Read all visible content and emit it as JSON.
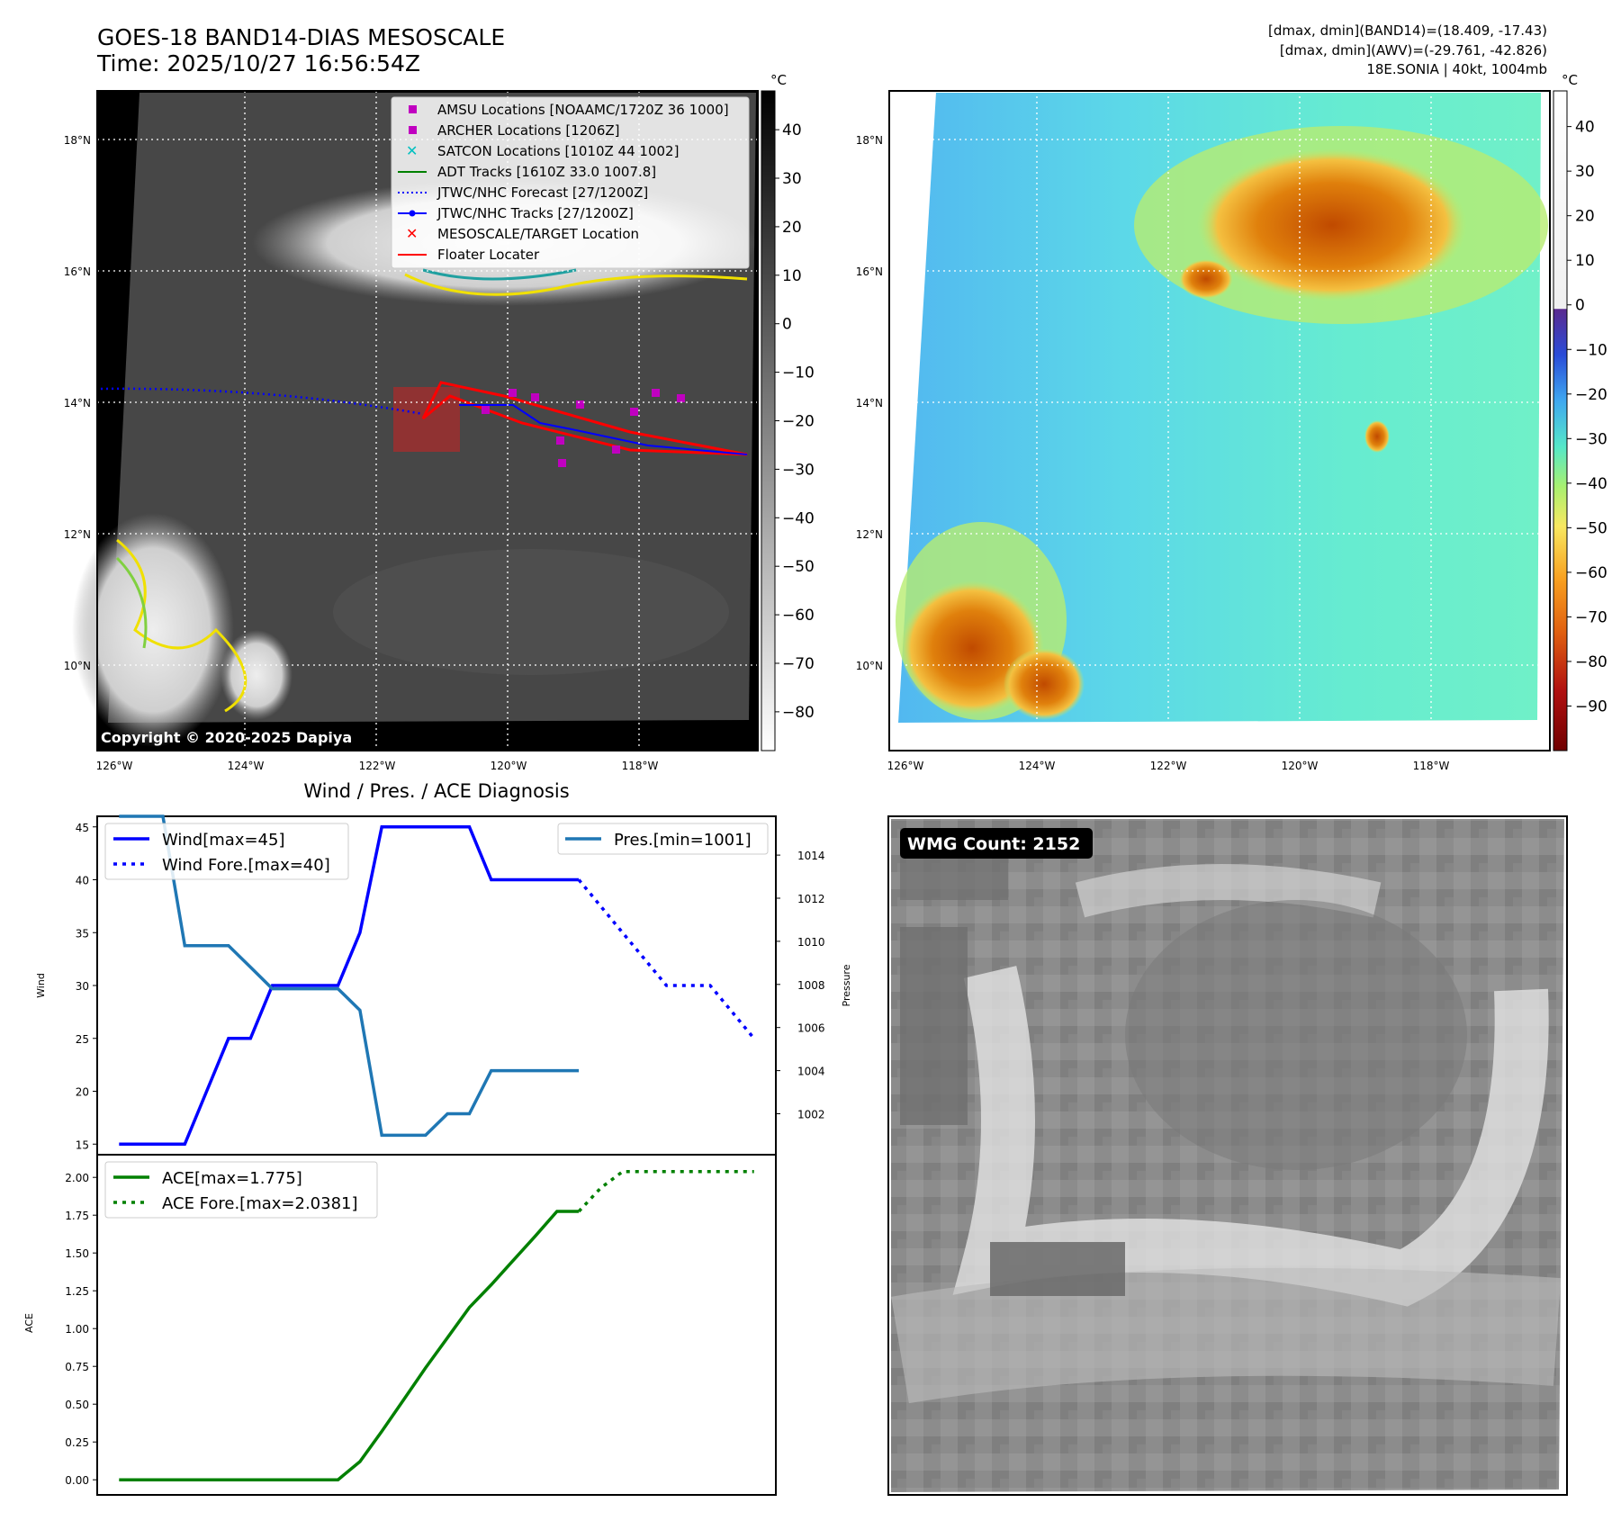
{
  "header": {
    "title_line1": "GOES-18 BAND14-DIAS MESOSCALE",
    "title_line2": "Time: 2025/10/27 16:56:54Z",
    "stats_line1": "[dmax, dmin](BAND14)=(18.409, -17.43)",
    "stats_line2": "[dmax, dmin](AWV)=(-29.761, -42.826)",
    "stats_line3": "18E.SONIA | 40kt, 1004mb",
    "copyright": "Copyright © 2020-2025 Dapiya",
    "wmg_label": "WMG Count: 2152",
    "diag_title": "Wind / Pres. / ACE Diagnosis"
  },
  "maps": {
    "lat_ticks": [
      "18°N",
      "16°N",
      "14°N",
      "12°N",
      "10°N"
    ],
    "lat_values": [
      18,
      16,
      14,
      12,
      10
    ],
    "lon_ticks": [
      "126°W",
      "124°W",
      "122°W",
      "120°W",
      "118°W"
    ],
    "lon_values": [
      -126,
      -124,
      -122,
      -120,
      -118
    ],
    "colorbar_unit": "°C",
    "gray_colorbar_ticks": [
      "40",
      "30",
      "20",
      "10",
      "0",
      "−10",
      "−20",
      "−30",
      "−40",
      "−50",
      "−60",
      "−70",
      "−80"
    ],
    "gray_colorbar_values": [
      40,
      30,
      20,
      10,
      0,
      -10,
      -20,
      -30,
      -40,
      -50,
      -60,
      -70,
      -80
    ],
    "color_colorbar_ticks": [
      "40",
      "30",
      "20",
      "10",
      "0",
      "−10",
      "−20",
      "−30",
      "−40",
      "−50",
      "−60",
      "−70",
      "−80",
      "−90"
    ],
    "color_colorbar_values": [
      40,
      30,
      20,
      10,
      0,
      -10,
      -20,
      -30,
      -40,
      -50,
      -60,
      -70,
      -80,
      -90
    ],
    "legend": [
      {
        "label": "AMSU Locations [NOAAMC/1720Z 36 1000]",
        "marker": "square",
        "color": "#c000c0"
      },
      {
        "label": "ARCHER Locations [1206Z]",
        "marker": "square",
        "color": "#c000c0"
      },
      {
        "label": "SATCON Locations [1010Z 44 1002]",
        "marker": "x",
        "color": "#00c0c0"
      },
      {
        "label": "ADT Tracks [1610Z 33.0 1007.8]",
        "marker": "line",
        "color": "#008000"
      },
      {
        "label": "JTWC/NHC Forecast [27/1200Z]",
        "marker": "dotted",
        "color": "#0000ff"
      },
      {
        "label": "JTWC/NHC Tracks [27/1200Z]",
        "marker": "line-dot",
        "color": "#0000ff"
      },
      {
        "label": "MESOSCALE/TARGET Location",
        "marker": "x",
        "color": "#ff0000"
      },
      {
        "label": "Floater Locater",
        "marker": "line",
        "color": "#ff0000"
      }
    ]
  },
  "chart_data": [
    {
      "type": "line",
      "title": "Wind / Pres. / ACE Diagnosis",
      "ylabel": "Wind",
      "y2label": "Pressure",
      "ylim": [
        14,
        46
      ],
      "y2lim": [
        1000.1,
        1015.8
      ],
      "yticks": [
        "45",
        "40",
        "35",
        "30",
        "25",
        "20",
        "15"
      ],
      "ytick_values": [
        45,
        40,
        35,
        30,
        25,
        20,
        15
      ],
      "y2ticks": [
        "1014",
        "1012",
        "1010",
        "1008",
        "1006",
        "1004",
        "1002"
      ],
      "y2tick_values": [
        1014,
        1012,
        1010,
        1008,
        1006,
        1004,
        1002
      ],
      "x_range": [
        -1,
        30
      ],
      "legend_left": [
        "Wind[max=45]",
        "Wind Fore.[max=40]"
      ],
      "legend_right": [
        "Pres.[min=1001]"
      ],
      "series": [
        {
          "name": "Wind[max=45]",
          "axis": "left",
          "color": "#0000ff",
          "style": "solid",
          "x": [
            0,
            1,
            2,
            3,
            4,
            5,
            6,
            7,
            8,
            9,
            10,
            11,
            12,
            13,
            14,
            15,
            16,
            17,
            18,
            19,
            20,
            21
          ],
          "values": [
            15,
            15,
            15,
            15,
            20,
            25,
            25,
            30,
            30,
            30,
            30,
            35,
            45,
            45,
            45,
            45,
            45,
            40,
            40,
            40,
            40,
            40
          ]
        },
        {
          "name": "Wind Fore.[max=40]",
          "axis": "left",
          "color": "#0000ff",
          "style": "dotted",
          "x": [
            21,
            22,
            23,
            24,
            25,
            26,
            27,
            28,
            29
          ],
          "values": [
            40,
            37.5,
            35,
            32.5,
            30,
            30,
            30,
            27.5,
            25
          ]
        },
        {
          "name": "Pres.[min=1001]",
          "axis": "right",
          "color": "#1f77b4",
          "style": "solid",
          "x": [
            0,
            1,
            2,
            3,
            4,
            5,
            6,
            7,
            8,
            9,
            10,
            11,
            12,
            13,
            14,
            15,
            16,
            17,
            18,
            19,
            20,
            21
          ],
          "values": [
            1015.8,
            1015.8,
            1015.8,
            1009.8,
            1009.8,
            1009.8,
            1008.8,
            1007.8,
            1007.8,
            1007.8,
            1007.8,
            1006.8,
            1001.0,
            1001.0,
            1001.0,
            1002.0,
            1002.0,
            1004.0,
            1004.0,
            1004.0,
            1004.0,
            1004.0
          ]
        }
      ]
    },
    {
      "type": "line",
      "ylabel": "ACE",
      "ylim": [
        -0.1,
        2.15
      ],
      "yticks": [
        "2.00",
        "1.75",
        "1.50",
        "1.25",
        "1.00",
        "0.75",
        "0.50",
        "0.25",
        "0.00"
      ],
      "ytick_values": [
        2.0,
        1.75,
        1.5,
        1.25,
        1.0,
        0.75,
        0.5,
        0.25,
        0.0
      ],
      "x_range": [
        -1,
        30
      ],
      "legend": [
        "ACE[max=1.775]",
        "ACE Fore.[max=2.0381]"
      ],
      "series": [
        {
          "name": "ACE[max=1.775]",
          "color": "#008000",
          "style": "solid",
          "x": [
            0,
            1,
            2,
            3,
            4,
            5,
            6,
            7,
            8,
            9,
            10,
            11,
            12,
            13,
            14,
            15,
            16,
            17,
            18,
            19,
            20,
            21
          ],
          "values": [
            0,
            0,
            0,
            0,
            0,
            0,
            0,
            0,
            0,
            0,
            0,
            0.12,
            0.32,
            0.53,
            0.74,
            0.94,
            1.14,
            1.29,
            1.45,
            1.61,
            1.775,
            1.775
          ]
        },
        {
          "name": "ACE Fore.[max=2.0381]",
          "color": "#008000",
          "style": "dotted",
          "x": [
            21,
            22,
            23,
            24,
            25,
            26,
            27,
            28,
            29
          ],
          "values": [
            1.775,
            1.93,
            2.0381,
            2.0381,
            2.0381,
            2.0381,
            2.0381,
            2.0381,
            2.0381
          ]
        }
      ]
    }
  ]
}
